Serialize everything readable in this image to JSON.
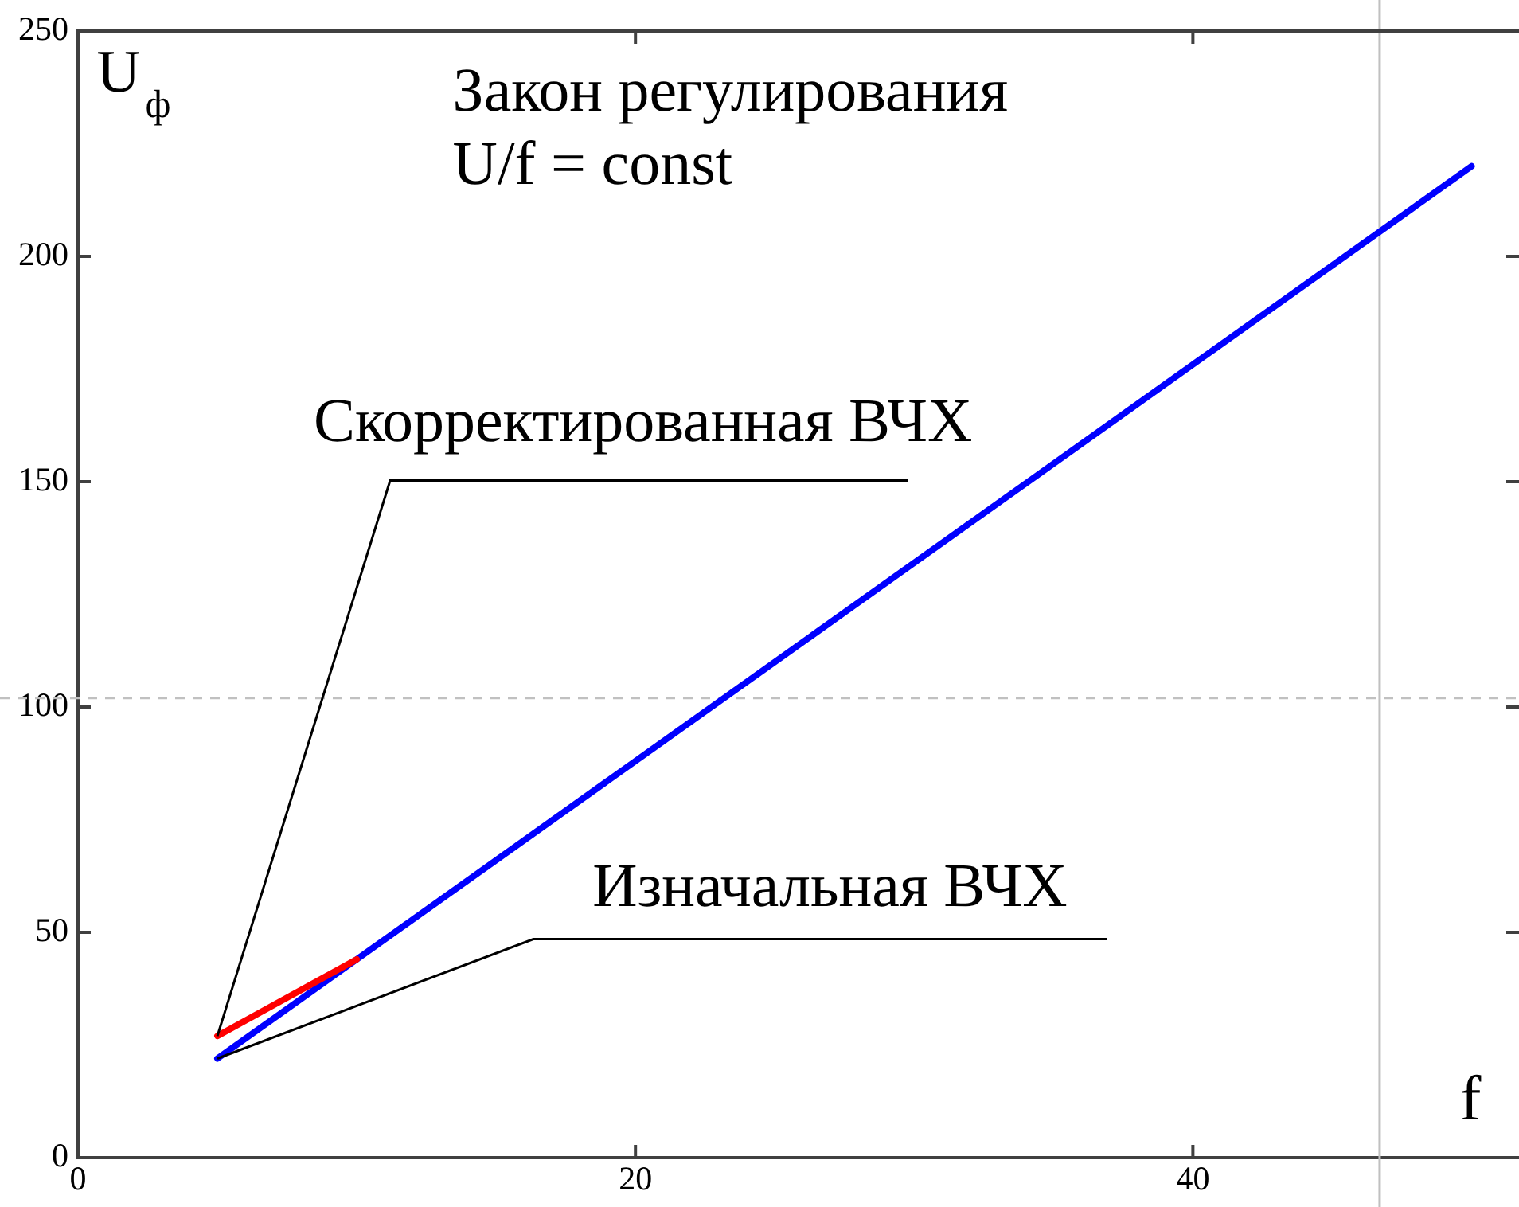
{
  "chart_data": {
    "type": "line",
    "xlabel": "f",
    "ylabel": "U$_{ф}$",
    "annotations": [
      "Закон регулирования",
      "U/f = const"
    ],
    "series": [
      {
        "name": "Скорректированная ВЧХ",
        "color": "#ff0000",
        "x": [
          5,
          10
        ],
        "values": [
          27,
          44
        ]
      },
      {
        "name": "Изначальная ВЧХ",
        "color": "#0000ff",
        "x": [
          5,
          50
        ],
        "values": [
          22,
          220
        ]
      }
    ],
    "xlim": [
      0,
      51.7
    ],
    "xticks": [
      0,
      20,
      40
    ],
    "ylim": [
      0,
      250
    ],
    "yticks": [
      0,
      50,
      100,
      150,
      200,
      250
    ],
    "ref_lines": [
      {
        "axis": "x",
        "value": 46.7,
        "color": "#c0c0c0"
      },
      {
        "axis": "y",
        "value": 102,
        "color": "#c0c0c0",
        "line_style": "dashed"
      }
    ]
  }
}
